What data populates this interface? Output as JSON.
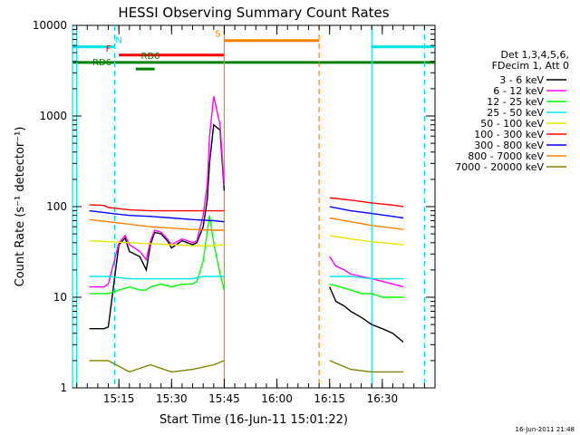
{
  "chart_data": {
    "type": "line",
    "title": "HESSI Observing Summary Count Rates",
    "xlabel": "Start Time (16-Jun-11 15:01:22)",
    "ylabel": "Count Rate (s⁻¹ detector⁻¹)",
    "xlim": [
      15.03,
      16.75
    ],
    "ylim": [
      1,
      10000
    ],
    "yscale": "log",
    "grid": false,
    "x_tick_labels": [
      "15:15",
      "15:30",
      "15:45",
      "16:00",
      "16:15",
      "16:30"
    ],
    "x_tick_values": [
      15.25,
      15.5,
      15.75,
      16.0,
      16.25,
      16.5
    ],
    "y_tick_labels": [
      "1",
      "10",
      "100",
      "1000",
      "10000"
    ],
    "y_tick_values": [
      1,
      10,
      100,
      1000,
      10000
    ],
    "legend_placement": "right",
    "legend_header": [
      "Det 1,3,4,5,6,",
      "FDecim 1, Att 0"
    ],
    "footer": "16-Jun-2011 21:48",
    "flags": [
      {
        "label": "N",
        "color": "#00e5e5",
        "segments": [
          [
            15.03,
            15.23
          ],
          [
            16.45,
            16.75
          ]
        ],
        "value": 5800,
        "label_x": 15.25
      },
      {
        "label": "S",
        "color": "#ff8000",
        "segments": [
          [
            15.75,
            16.2
          ]
        ],
        "value": 6800,
        "label_x": 15.72
      },
      {
        "label": "F",
        "color": "#ff0000",
        "segments": [
          [
            15.25,
            15.75
          ]
        ],
        "value": 4700,
        "label_x": 15.2
      },
      {
        "label": "RD6",
        "color": "#008000",
        "segments": [
          [
            15.03,
            16.75
          ]
        ],
        "value": 3900,
        "label_x": 15.4
      },
      {
        "label": "RD6",
        "color": "#008000",
        "segments": [
          [
            15.33,
            15.42
          ]
        ],
        "value": 3300,
        "label_x": 15.17
      }
    ],
    "boundaries": [
      {
        "x": 15.23,
        "color": "#00e5e5",
        "style": "dash"
      },
      {
        "x": 15.75,
        "color": "#ff8000",
        "style": "solid"
      },
      {
        "x": 16.2,
        "color": "#ff8000",
        "style": "dash"
      },
      {
        "x": 16.45,
        "color": "#00e5e5",
        "style": "solid"
      },
      {
        "x": 16.7,
        "color": "#00e5e5",
        "style": "dash"
      },
      {
        "x": 15.03,
        "color": "#00e5e5",
        "style": "solid"
      },
      {
        "x": 15.05,
        "color": "#00e5e5",
        "style": "solid"
      }
    ],
    "series": [
      {
        "name": "3 - 6 keV",
        "color": "#000000",
        "x": [
          15.11,
          15.18,
          15.2,
          15.25,
          15.28,
          15.3,
          15.35,
          15.38,
          15.4,
          15.42,
          15.45,
          15.48,
          15.5,
          15.55,
          15.6,
          15.62,
          15.65,
          15.67,
          15.68,
          15.7,
          15.73,
          15.75,
          16.25,
          16.28,
          16.32,
          16.35,
          16.4,
          16.45,
          16.5,
          16.55,
          16.6
        ],
        "y": [
          4.5,
          4.5,
          4.7,
          38,
          45,
          32,
          28,
          20,
          38,
          52,
          50,
          42,
          35,
          42,
          38,
          40,
          60,
          120,
          300,
          800,
          700,
          150,
          13,
          9,
          8,
          7,
          6,
          5,
          4.5,
          4,
          3.2
        ]
      },
      {
        "name": "6 - 12 keV",
        "color": "#ff00ff",
        "x": [
          15.11,
          15.18,
          15.2,
          15.25,
          15.28,
          15.3,
          15.35,
          15.38,
          15.4,
          15.42,
          15.45,
          15.48,
          15.5,
          15.55,
          15.6,
          15.62,
          15.65,
          15.67,
          15.68,
          15.7,
          15.73,
          15.75,
          16.25,
          16.28,
          16.32,
          16.35,
          16.4,
          16.45,
          16.5,
          16.55,
          16.6
        ],
        "y": [
          13,
          13,
          14,
          40,
          48,
          38,
          32,
          26,
          42,
          55,
          52,
          44,
          38,
          44,
          40,
          42,
          80,
          180,
          600,
          1650,
          800,
          170,
          28,
          22,
          20,
          18,
          17,
          16,
          15,
          14,
          13
        ]
      },
      {
        "name": "12 - 25 keV",
        "color": "#00ff00",
        "x": [
          15.11,
          15.18,
          15.2,
          15.25,
          15.3,
          15.35,
          15.38,
          15.4,
          15.45,
          15.5,
          15.55,
          15.6,
          15.62,
          15.65,
          15.68,
          15.7,
          15.73,
          15.75,
          16.25,
          16.3,
          16.35,
          16.4,
          16.45,
          16.5,
          16.6
        ],
        "y": [
          11,
          11,
          11,
          12,
          13,
          12,
          12,
          13,
          14,
          13,
          14,
          14,
          15,
          25,
          80,
          40,
          18,
          12,
          14,
          13,
          12,
          11,
          11,
          10,
          10
        ]
      },
      {
        "name": "25 - 50 keV",
        "color": "#00e5e5",
        "x": [
          15.11,
          15.2,
          15.3,
          15.4,
          15.5,
          15.6,
          15.65,
          15.7,
          15.75,
          16.25,
          16.35,
          16.45,
          16.55,
          16.6
        ],
        "y": [
          17,
          17,
          16,
          16,
          16,
          16,
          17,
          17,
          17,
          17,
          17,
          16,
          16,
          16
        ]
      },
      {
        "name": "50 - 100 keV",
        "color": "#e5e500",
        "x": [
          15.11,
          15.2,
          15.3,
          15.4,
          15.5,
          15.6,
          15.7,
          15.75,
          16.25,
          16.35,
          16.45,
          16.55,
          16.6
        ],
        "y": [
          42,
          41,
          40,
          39,
          38,
          37,
          37,
          38,
          48,
          44,
          41,
          39,
          38
        ]
      },
      {
        "name": "100 - 300 keV",
        "color": "#ff0000",
        "x": [
          15.11,
          15.18,
          15.2,
          15.3,
          15.4,
          15.5,
          15.6,
          15.7,
          15.75,
          16.25,
          16.35,
          16.45,
          16.55,
          16.6
        ],
        "y": [
          105,
          103,
          98,
          92,
          90,
          90,
          90,
          90,
          90,
          125,
          118,
          110,
          104,
          100
        ]
      },
      {
        "name": "300 - 800 keV",
        "color": "#0000ff",
        "x": [
          15.11,
          15.2,
          15.3,
          15.4,
          15.5,
          15.6,
          15.7,
          15.75,
          16.25,
          16.35,
          16.45,
          16.55,
          16.6
        ],
        "y": [
          90,
          85,
          80,
          78,
          75,
          72,
          70,
          68,
          100,
          90,
          84,
          78,
          75
        ]
      },
      {
        "name": "800 - 7000 keV",
        "color": "#ff8000",
        "x": [
          15.11,
          15.2,
          15.3,
          15.4,
          15.5,
          15.6,
          15.7,
          15.75,
          16.25,
          16.35,
          16.45,
          16.55,
          16.6
        ],
        "y": [
          72,
          68,
          64,
          60,
          58,
          56,
          55,
          55,
          75,
          68,
          62,
          58,
          56
        ]
      },
      {
        "name": "7000 - 20000 keV",
        "color": "#808000",
        "x": [
          15.11,
          15.2,
          15.3,
          15.4,
          15.5,
          15.6,
          15.7,
          15.75,
          16.25,
          16.35,
          16.45,
          16.55,
          16.6
        ],
        "y": [
          2,
          2,
          1.5,
          1.8,
          1.5,
          1.6,
          1.8,
          2,
          2,
          1.6,
          1.5,
          1.5,
          1.5
        ]
      }
    ]
  }
}
